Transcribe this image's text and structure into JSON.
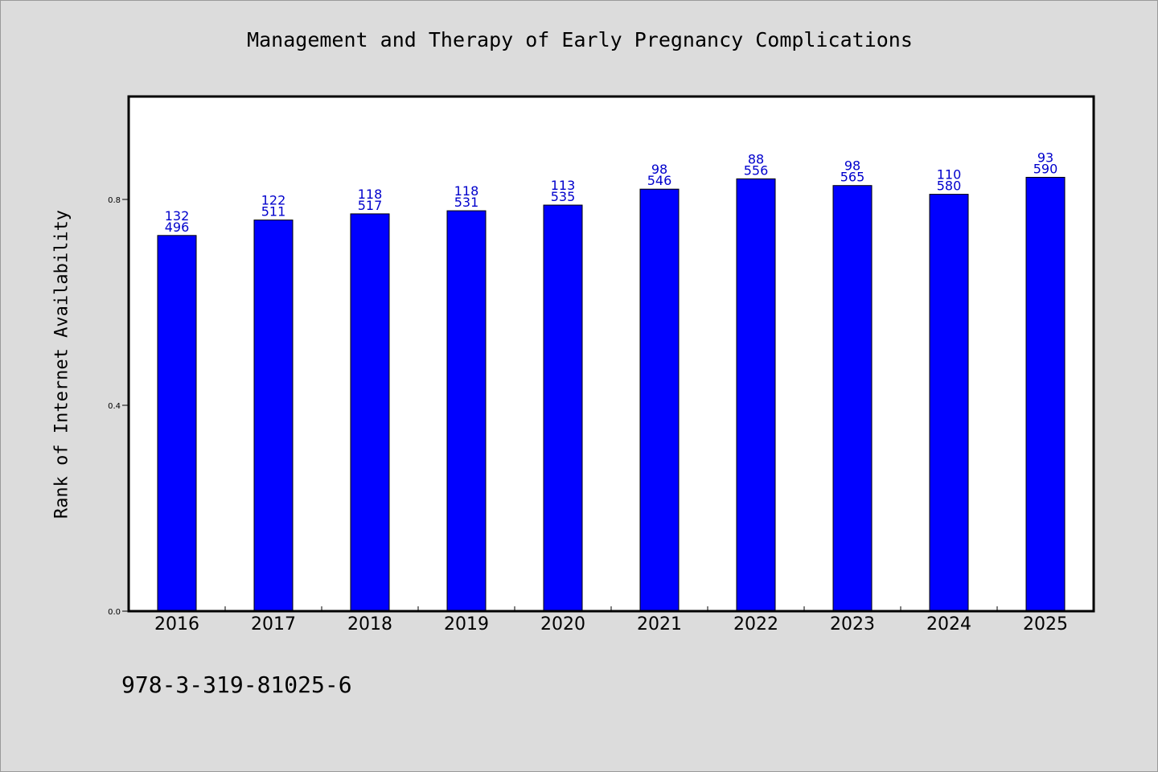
{
  "chart_data": {
    "type": "bar",
    "title": "Management and Therapy of Early Pregnancy Complications",
    "xlabel": "",
    "ylabel": "Rank of Internet Availability",
    "categories": [
      "2016",
      "2017",
      "2018",
      "2019",
      "2020",
      "2021",
      "2022",
      "2023",
      "2024",
      "2025"
    ],
    "values": [
      0.73,
      0.76,
      0.772,
      0.778,
      0.789,
      0.82,
      0.84,
      0.827,
      0.81,
      0.843
    ],
    "bar_labels": [
      [
        "132",
        "496"
      ],
      [
        "122",
        "511"
      ],
      [
        "118",
        "517"
      ],
      [
        "118",
        "531"
      ],
      [
        "113",
        "535"
      ],
      [
        "98",
        "546"
      ],
      [
        "88",
        "556"
      ],
      [
        "98",
        "565"
      ],
      [
        "110",
        "580"
      ],
      [
        "93",
        "590"
      ]
    ],
    "ylim": [
      0,
      1.0
    ],
    "yticks": [
      0.0,
      0.4,
      0.8
    ],
    "ytick_labels": [
      "0.0",
      "0.4",
      "0.8"
    ],
    "grid": false,
    "colors": {
      "bar": "#0000ff",
      "bar_label": "#0000cc",
      "background": "#dcdcdc",
      "plot_background": "#ffffff"
    }
  },
  "footer": {
    "isbn": "978-3-319-81025-6"
  }
}
